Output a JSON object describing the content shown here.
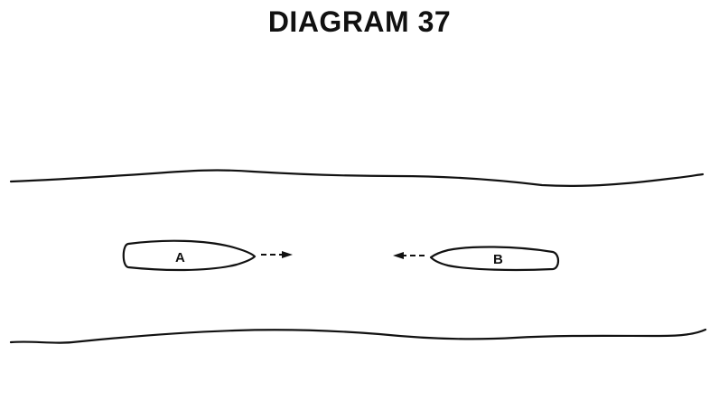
{
  "title": "DIAGRAM 37",
  "vessels": [
    {
      "label": "A",
      "heading": "east"
    },
    {
      "label": "B",
      "heading": "west"
    }
  ],
  "colors": {
    "ink": "#111111",
    "background": "#ffffff"
  }
}
